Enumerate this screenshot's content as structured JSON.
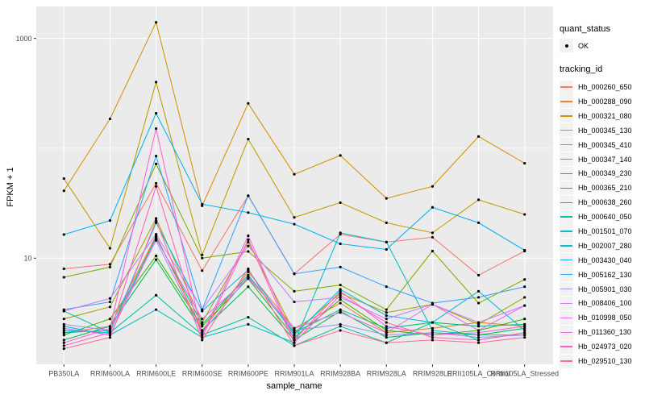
{
  "figure": {
    "background": "#FFFFFF",
    "panel_background": "#EBEBEB",
    "gridline_color": "#FFFFFF",
    "tick_color": "#333333",
    "axis_text_color": "#4D4D4D",
    "axis_title_color": "#000000",
    "point_color": "#000000",
    "legend_key_background": "#F2F2F2"
  },
  "legend": {
    "quant_status_title": "quant_status",
    "quant_status_items": [
      "OK"
    ],
    "tracking_id_title": "tracking_id"
  },
  "chart_data": {
    "type": "line",
    "title": "",
    "xlabel": "sample_name",
    "ylabel": "FPKM + 1",
    "y_scale": "log10",
    "grid": true,
    "legend_position": "right",
    "y_ticks": [
      {
        "value": 1000,
        "label": "1000"
      },
      {
        "value": 10,
        "label": "10"
      }
    ],
    "y_minor_gridlines": [
      100
    ],
    "ylim_log10": [
      0.034,
      3.291
    ],
    "categories": [
      "PB350LA",
      "RRIM600LA",
      "RRIM600LE",
      "RRIM600SE",
      "RRIM600PE",
      "RRIM901LA",
      "RRIM928BA",
      "RRIM928LA",
      "RRIM928LE",
      "RRII105LA_Control",
      "RRII105LA_Stressed"
    ],
    "series": [
      {
        "name": "Hb_000260_650",
        "color": "#F8766D",
        "quant_status": "OK",
        "values": [
          8.0,
          8.8,
          48,
          7.7,
          37,
          7.2,
          16.5,
          14,
          15.5,
          7.0,
          11.6
        ]
      },
      {
        "name": "Hb_000288_090",
        "color": "#EA8331",
        "quant_status": "OK",
        "values": [
          2.1,
          2.4,
          16,
          2.2,
          7.5,
          2.3,
          3.9,
          2.1,
          2.3,
          2.6,
          2.4
        ]
      },
      {
        "name": "Hb_000321_080",
        "color": "#D89000",
        "quant_status": "OK",
        "values": [
          41,
          185,
          1400,
          30,
          256,
          58,
          86,
          35,
          45,
          128,
          73
        ]
      },
      {
        "name": "Hb_000345_130",
        "color": "#C09B00",
        "quant_status": "OK",
        "values": [
          53,
          12.3,
          400,
          10.7,
          121,
          23.5,
          32,
          21,
          17,
          34,
          25
        ]
      },
      {
        "name": "Hb_000345_410",
        "color": "#A3A500",
        "quant_status": "OK",
        "values": [
          2.8,
          3.6,
          23,
          2.6,
          14,
          2.1,
          4.8,
          3.2,
          3.8,
          2.5,
          4.4
        ]
      },
      {
        "name": "Hb_000347_140",
        "color": "#7CAE00",
        "quant_status": "OK",
        "values": [
          6.7,
          8.3,
          72,
          10.0,
          11.5,
          5.0,
          5.7,
          3.4,
          11.6,
          3.9,
          6.4
        ]
      },
      {
        "name": "Hb_000349_230",
        "color": "#39B600",
        "quant_status": "OK",
        "values": [
          2.0,
          2.8,
          10.5,
          2.4,
          6.5,
          1.9,
          4.2,
          2.2,
          2.0,
          2.2,
          2.8
        ]
      },
      {
        "name": "Hb_000365_210",
        "color": "#00BB4E",
        "quant_status": "OK",
        "values": [
          1.8,
          2.4,
          9.7,
          2.2,
          5.5,
          1.8,
          3.3,
          1.9,
          2.1,
          2.0,
          2.3
        ]
      },
      {
        "name": "Hb_000638_260",
        "color": "#00BF7D",
        "quant_status": "OK",
        "values": [
          2.1,
          2.2,
          15.5,
          2.5,
          7.0,
          2.1,
          3.4,
          2.3,
          2.6,
          2.4,
          2.5
        ]
      },
      {
        "name": "Hb_000640_050",
        "color": "#00C1A3",
        "quant_status": "OK",
        "values": [
          3.3,
          2.1,
          4.6,
          2.0,
          2.9,
          1.6,
          2.4,
          1.7,
          2.6,
          1.8,
          2.1
        ]
      },
      {
        "name": "Hb_001501_070",
        "color": "#00BFC4",
        "quant_status": "OK",
        "values": [
          2.4,
          2.0,
          3.4,
          1.9,
          2.5,
          1.7,
          17,
          14,
          2.2,
          2.0,
          2.0
        ]
      },
      {
        "name": "Hb_002007_280",
        "color": "#00BAE0",
        "quant_status": "OK",
        "values": [
          2.2,
          2.1,
          21,
          3.3,
          7.8,
          2.0,
          5.2,
          3.0,
          2.6,
          5.0,
          2.2
        ]
      },
      {
        "name": "Hb_003430_040",
        "color": "#00B0F6",
        "quant_status": "OK",
        "values": [
          16.4,
          22,
          208,
          31,
          26,
          20.4,
          13.5,
          12,
          29,
          21,
          11.8
        ]
      },
      {
        "name": "Hb_005162_130",
        "color": "#35A2FF",
        "quant_status": "OK",
        "values": [
          3.4,
          4.0,
          85,
          3.4,
          37,
          7.2,
          8.3,
          5.5,
          3.9,
          4.4,
          5.5
        ]
      },
      {
        "name": "Hb_005901_030",
        "color": "#9590FF",
        "quant_status": "OK",
        "values": [
          2.5,
          2.2,
          14.5,
          2.1,
          6.8,
          2.2,
          2.5,
          2.0,
          2.1,
          1.9,
          2.0
        ]
      },
      {
        "name": "Hb_008406_100",
        "color": "#C77CFF",
        "quant_status": "OK",
        "values": [
          3.3,
          4.3,
          16.5,
          3.4,
          12.9,
          4.0,
          4.4,
          2.8,
          3.8,
          2.6,
          3.7
        ]
      },
      {
        "name": "Hb_010998_050",
        "color": "#E76BF3",
        "quant_status": "OK",
        "values": [
          2.3,
          2.0,
          15,
          2.8,
          6.6,
          2.3,
          3.2,
          2.1,
          3.8,
          2.2,
          3.7
        ]
      },
      {
        "name": "Hb_011360_130",
        "color": "#FA62DB",
        "quant_status": "OK",
        "values": [
          1.7,
          2.3,
          151,
          2.0,
          16,
          1.8,
          5.0,
          2.4,
          2.0,
          2.1,
          2.4
        ]
      },
      {
        "name": "Hb_024973_020",
        "color": "#FF62BC",
        "quant_status": "OK",
        "values": [
          1.6,
          2.1,
          45,
          1.9,
          14.7,
          1.7,
          4.6,
          2.6,
          1.9,
          1.8,
          2.1
        ]
      },
      {
        "name": "Hb_029510_130",
        "color": "#FF6A98",
        "quant_status": "OK",
        "values": [
          1.5,
          1.9,
          22,
          1.8,
          8.0,
          1.6,
          2.2,
          1.7,
          1.8,
          1.7,
          1.9
        ]
      }
    ]
  }
}
